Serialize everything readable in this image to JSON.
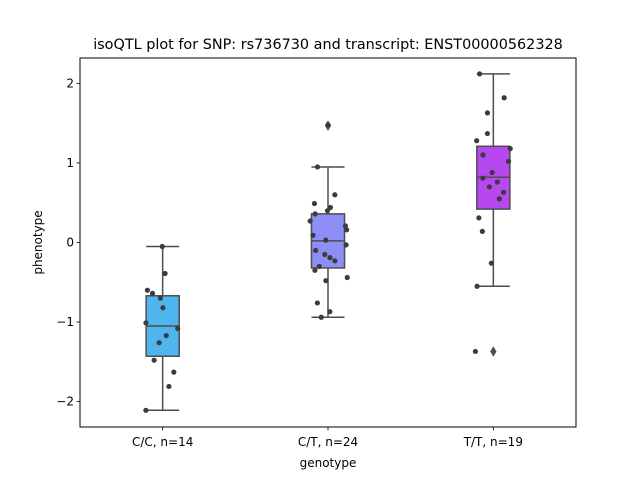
{
  "chart_data": {
    "type": "box",
    "title": "isoQTL plot for SNP: rs736730 and transcript: ENST00000562328",
    "xlabel": "genotype",
    "ylabel": "phenotype",
    "ylim": [
      -2.32,
      2.32
    ],
    "yticks": [
      -2,
      -1,
      0,
      1,
      2
    ],
    "ytick_labels": [
      "−2",
      "−1",
      "0",
      "1",
      "2"
    ],
    "grid": false,
    "categories": [
      "C/C, n=14",
      "C/T, n=24",
      "T/T, n=19"
    ],
    "boxes": [
      {
        "category": "C/C, n=14",
        "color": "#4fb5ef",
        "whisker_low": -2.11,
        "q1": -1.43,
        "median": -1.05,
        "q3": -0.67,
        "whisker_high": -0.05,
        "outliers": []
      },
      {
        "category": "C/T, n=24",
        "color": "#8d8ef8",
        "whisker_low": -0.94,
        "q1": -0.32,
        "median": 0.02,
        "q3": 0.36,
        "whisker_high": 0.95,
        "outliers": [
          1.47
        ]
      },
      {
        "category": "T/T, n=19",
        "color": "#b748f0",
        "whisker_low": -0.55,
        "q1": 0.42,
        "median": 0.82,
        "q3": 1.21,
        "whisker_high": 2.12,
        "outliers": [
          -1.37
        ]
      }
    ],
    "points": [
      [
        -0.05,
        -0.39,
        -0.6,
        -0.64,
        -0.7,
        -0.82,
        -1.01,
        -1.08,
        -1.17,
        -1.26,
        -1.48,
        -1.63,
        -1.81,
        -2.11
      ],
      [
        1.48,
        0.95,
        0.6,
        0.49,
        0.44,
        0.4,
        0.36,
        0.27,
        0.21,
        0.16,
        0.09,
        0.03,
        -0.03,
        -0.1,
        -0.15,
        -0.19,
        -0.23,
        -0.3,
        -0.35,
        -0.44,
        -0.48,
        -0.76,
        -0.87,
        -0.94
      ],
      [
        2.12,
        1.82,
        1.63,
        1.37,
        1.28,
        1.18,
        1.1,
        1.02,
        0.88,
        0.81,
        0.76,
        0.7,
        0.63,
        0.55,
        0.31,
        0.14,
        -0.26,
        -0.55,
        -1.37
      ]
    ],
    "point_color": "#3c3c3c"
  }
}
